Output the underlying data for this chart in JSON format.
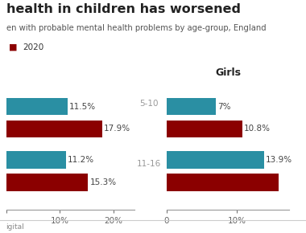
{
  "title_line1": "health in children has worsened",
  "subtitle": "en with probable mental health problems by age-group, England",
  "legend_2020_label": "2020",
  "color_2017": "#2a8fa3",
  "color_2020": "#8b0000",
  "boys_2017": [
    11.5,
    11.2
  ],
  "boys_2020": [
    17.9,
    15.3
  ],
  "girls_2017": [
    7.0,
    13.9
  ],
  "girls_2020": [
    10.8,
    16.0
  ],
  "boys_2017_labels": [
    "11.5%",
    "11.2%"
  ],
  "boys_2020_labels": [
    "17.9%",
    "15.3%"
  ],
  "girls_2017_labels": [
    "7%",
    "13.9%"
  ],
  "girls_2020_labels": [
    "10.8%",
    ""
  ],
  "footer": "igital",
  "background_color": "#ffffff"
}
